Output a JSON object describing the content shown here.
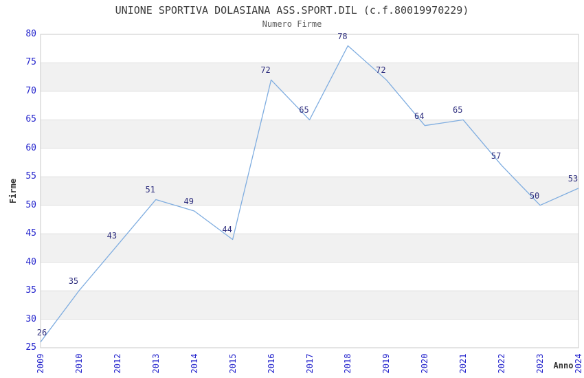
{
  "header": {
    "title": "UNIONE SPORTIVA DOLASIANA ASS.SPORT.DIL (c.f.80019970229)",
    "subtitle": "Numero Firme"
  },
  "chart_data": {
    "type": "line",
    "title": "UNIONE SPORTIVA DOLASIANA ASS.SPORT.DIL (c.f.80019970229)",
    "subtitle": "Numero Firme",
    "xlabel": "Anno",
    "ylabel": "Firme",
    "categories": [
      "2009",
      "2010",
      "2012",
      "2013",
      "2014",
      "2015",
      "2016",
      "2017",
      "2018",
      "2019",
      "2020",
      "2021",
      "2022",
      "2023",
      "2024"
    ],
    "values": [
      26,
      35,
      43,
      51,
      49,
      44,
      72,
      65,
      78,
      72,
      64,
      65,
      57,
      50,
      53
    ],
    "ylim": [
      25,
      80
    ],
    "ytick_step": 5,
    "yticks": [
      25,
      30,
      35,
      40,
      45,
      50,
      55,
      60,
      65,
      70,
      75,
      80
    ],
    "grid": "horizontal-bands-alternating",
    "legend": "none",
    "data_labels": true,
    "colors": {
      "line": "#7fade0",
      "tick_label": "#2222cc",
      "data_label": "#2e2e7e",
      "band": "#f1f1f1",
      "border": "#c9c9c9",
      "gridline": "#e0e0e0",
      "title": "#3a3a3a",
      "subtitle": "#5a5a5a",
      "axis_label": "#333333"
    }
  }
}
